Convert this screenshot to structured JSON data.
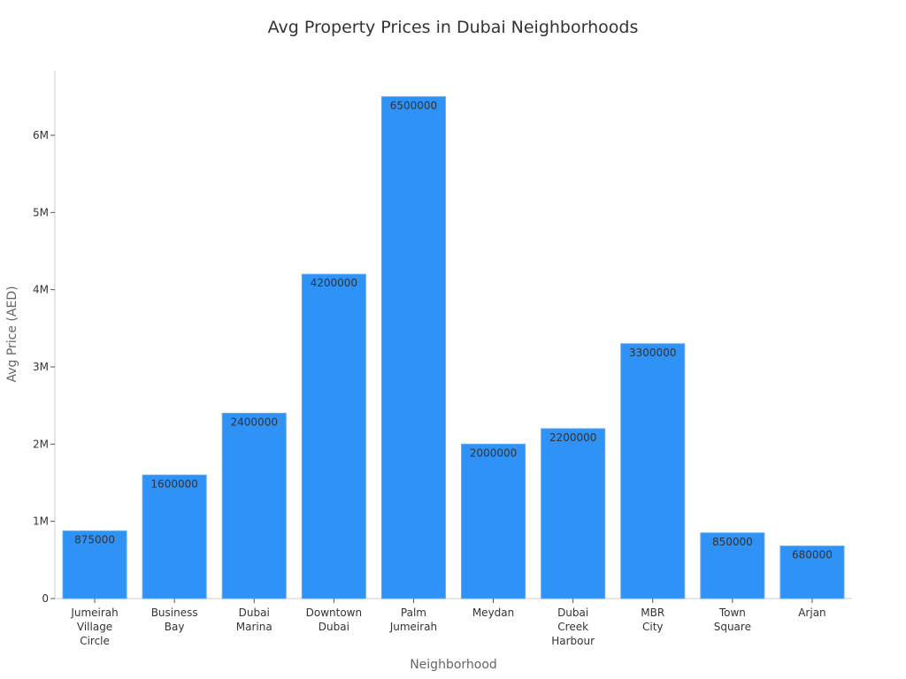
{
  "chart_data": {
    "type": "bar",
    "title": "Avg Property Prices in Dubai Neighborhoods",
    "xlabel": "Neighborhood",
    "ylabel": "Avg Price (AED)",
    "categories": [
      [
        "Jumeirah",
        "Village",
        "Circle"
      ],
      [
        "Business",
        "Bay"
      ],
      [
        "Dubai",
        "Marina"
      ],
      [
        "Downtown",
        "Dubai"
      ],
      [
        "Palm",
        "Jumeirah"
      ],
      [
        "Meydan"
      ],
      [
        "Dubai",
        "Creek",
        "Harbour"
      ],
      [
        "MBR",
        "City"
      ],
      [
        "Town",
        "Square"
      ],
      [
        "Arjan"
      ]
    ],
    "values": [
      875000,
      1600000,
      2400000,
      4200000,
      6500000,
      2000000,
      2200000,
      3300000,
      850000,
      680000
    ],
    "ylim": [
      0,
      6850000
    ],
    "yticks": [
      0,
      1000000,
      2000000,
      3000000,
      4000000,
      5000000,
      6000000
    ],
    "ytick_labels": [
      "0",
      "1M",
      "2M",
      "3M",
      "4M",
      "5M",
      "6M"
    ],
    "bar_color": "#2e92f7",
    "grid": false,
    "legend": "none"
  }
}
